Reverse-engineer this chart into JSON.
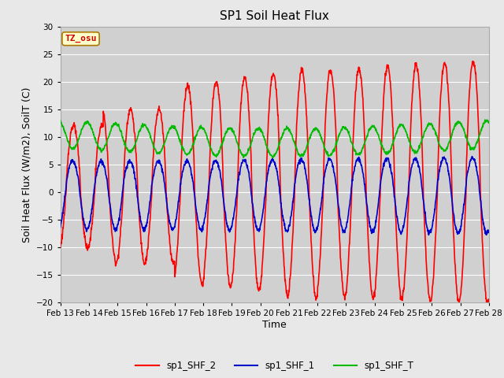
{
  "title": "SP1 Soil Heat Flux",
  "xlabel": "Time",
  "ylabel": "Soil Heat Flux (W/m2), SoilT (C)",
  "ylim": [
    -20,
    30
  ],
  "background_color": "#e8e8e8",
  "plot_bg_color": "#d0d0d0",
  "grid_color": "#ffffff",
  "color_red": "#ff0000",
  "color_blue": "#0000cc",
  "color_green": "#00bb00",
  "tz_label": "TZ_osu",
  "tz_bg": "#ffffcc",
  "tz_border": "#aa7700",
  "tz_text_color": "#cc0000",
  "legend_labels": [
    "sp1_SHF_2",
    "sp1_SHF_1",
    "sp1_SHF_T"
  ],
  "tick_labels": [
    "Feb 13",
    "Feb 14",
    "Feb 15",
    "Feb 16",
    "Feb 17",
    "Feb 18",
    "Feb 19",
    "Feb 20",
    "Feb 21",
    "Feb 22",
    "Feb 23",
    "Feb 24",
    "Feb 25",
    "Feb 26",
    "Feb 27",
    "Feb 28"
  ],
  "title_fontsize": 11,
  "axis_label_fontsize": 9,
  "tick_fontsize": 7.5,
  "linewidth": 1.2
}
